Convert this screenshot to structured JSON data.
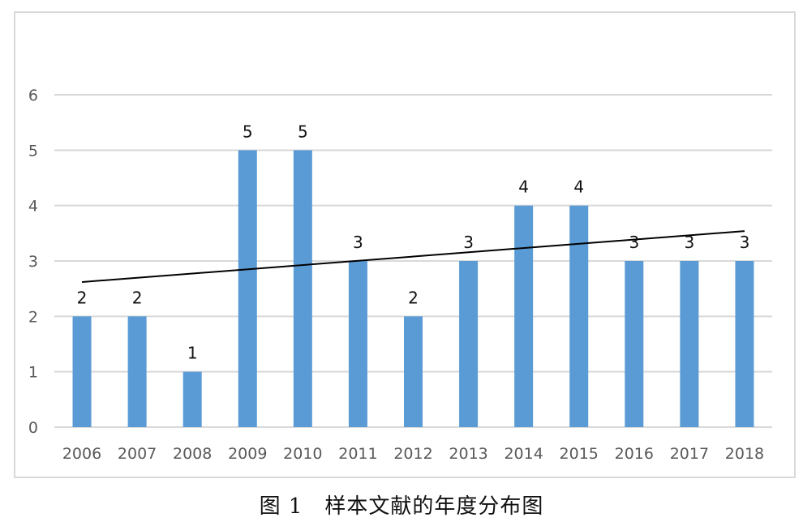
{
  "caption": "图 1　样本文献的年度分布图",
  "chart_data": {
    "type": "bar",
    "title": "",
    "xlabel": "",
    "ylabel": "",
    "categories": [
      "2006",
      "2007",
      "2008",
      "2009",
      "2010",
      "2011",
      "2012",
      "2013",
      "2014",
      "2015",
      "2016",
      "2017",
      "2018"
    ],
    "values": [
      2,
      2,
      1,
      5,
      5,
      3,
      2,
      3,
      4,
      4,
      3,
      3,
      3
    ],
    "ylim": [
      0,
      6
    ],
    "yticks": [
      "0",
      "1",
      "2",
      "3",
      "4",
      "5",
      "6"
    ],
    "grid": true,
    "legend": "none",
    "data_labels": true,
    "trendline": {
      "type": "linear",
      "start": 2.62,
      "end": 3.54
    },
    "colors": {
      "bar": "#5b9bd5",
      "grid": "#d9d9d9",
      "trendline": "#000000",
      "axis_text": "#595959"
    }
  }
}
